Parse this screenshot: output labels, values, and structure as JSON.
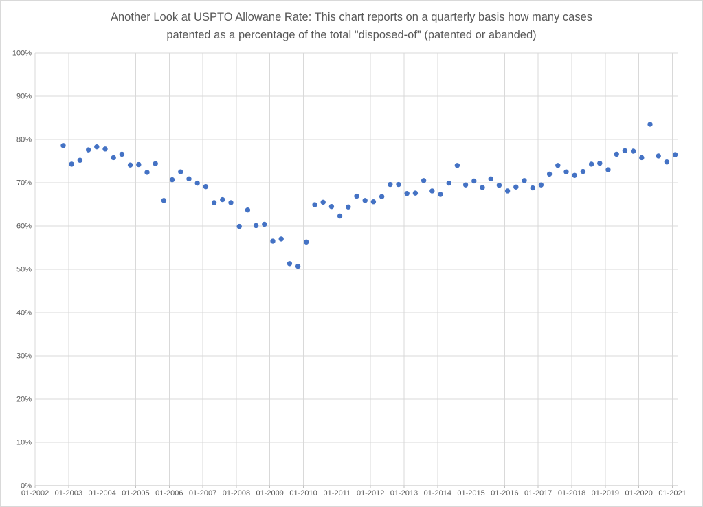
{
  "window": {
    "background_color": "#ffffff",
    "frame_border_color": "#d9d9d9"
  },
  "chart_data": {
    "type": "scatter",
    "title": "Another Look at USPTO Allowane Rate: This chart reports on a quarterly basis how many cases patented as a percentage of the total \"disposed-of\" (patented or abanded)",
    "title_lines": [
      "Another Look at USPTO Allowane Rate: This chart reports on a quarterly basis how many cases",
      "patented as a percentage of the total \"disposed-of\" (patented or abanded)"
    ],
    "xlabel": "",
    "ylabel": "",
    "legend": "none",
    "grid": "both",
    "y_tick_labels": [
      "0%",
      "10%",
      "20%",
      "30%",
      "40%",
      "50%",
      "60%",
      "70%",
      "80%",
      "90%",
      "100%"
    ],
    "ylim": [
      0,
      100
    ],
    "x_tick_labels": [
      "01-2002",
      "01-2003",
      "01-2004",
      "01-2005",
      "01-2006",
      "01-2007",
      "01-2008",
      "01-2009",
      "01-2010",
      "01-2011",
      "01-2012",
      "01-2013",
      "01-2014",
      "01-2015",
      "01-2016",
      "01-2017",
      "01-2018",
      "01-2019",
      "01-2020",
      "01-2021"
    ],
    "marker_color": "#4472c4",
    "gridline_color": "#d9d9d9",
    "axis_line_color": "#bfbfbf",
    "tick_label_color": "#595959",
    "title_color": "#595959",
    "points": {
      "quarters": [
        "2002-Q4",
        "2003-Q1",
        "2003-Q2",
        "2003-Q3",
        "2003-Q4",
        "2004-Q1",
        "2004-Q2",
        "2004-Q3",
        "2004-Q4",
        "2005-Q1",
        "2005-Q2",
        "2005-Q3",
        "2005-Q4",
        "2006-Q1",
        "2006-Q2",
        "2006-Q3",
        "2006-Q4",
        "2007-Q1",
        "2007-Q2",
        "2007-Q3",
        "2007-Q4",
        "2008-Q1",
        "2008-Q2",
        "2008-Q3",
        "2008-Q4",
        "2009-Q1",
        "2009-Q2",
        "2009-Q3",
        "2009-Q4",
        "2010-Q1",
        "2010-Q2",
        "2010-Q3",
        "2010-Q4",
        "2011-Q1",
        "2011-Q2",
        "2011-Q3",
        "2011-Q4",
        "2012-Q1",
        "2012-Q2",
        "2012-Q3",
        "2012-Q4",
        "2013-Q1",
        "2013-Q2",
        "2013-Q3",
        "2013-Q4",
        "2014-Q1",
        "2014-Q2",
        "2014-Q3",
        "2014-Q4",
        "2015-Q1",
        "2015-Q2",
        "2015-Q3",
        "2015-Q4",
        "2016-Q1",
        "2016-Q2",
        "2016-Q3",
        "2016-Q4",
        "2017-Q1",
        "2017-Q2",
        "2017-Q3",
        "2017-Q4",
        "2018-Q1",
        "2018-Q2",
        "2018-Q3",
        "2018-Q4",
        "2019-Q1",
        "2019-Q2",
        "2019-Q3",
        "2019-Q4",
        "2020-Q1",
        "2020-Q2",
        "2020-Q3",
        "2020-Q4",
        "2021-Q1"
      ],
      "values_percent": [
        78.6,
        74.3,
        75.2,
        77.6,
        78.3,
        77.8,
        75.8,
        76.6,
        74.1,
        74.2,
        72.4,
        74.4,
        65.9,
        70.7,
        72.5,
        70.9,
        69.9,
        69.1,
        65.4,
        66.1,
        65.4,
        59.9,
        63.7,
        60.1,
        60.4,
        56.5,
        57.0,
        51.3,
        50.7,
        56.3,
        64.9,
        65.5,
        64.5,
        62.3,
        64.4,
        66.9,
        65.9,
        65.6,
        66.8,
        69.6,
        69.6,
        67.5,
        67.6,
        70.5,
        68.1,
        67.3,
        69.9,
        74.0,
        69.5,
        70.4,
        68.9,
        70.9,
        69.4,
        68.1,
        69.0,
        70.5,
        68.8,
        69.5,
        72.0,
        74.0,
        72.5,
        71.7,
        72.6,
        74.3,
        74.5,
        73.0,
        76.6,
        77.4,
        77.3,
        75.8,
        83.5,
        76.2,
        74.8,
        76.5
      ]
    }
  }
}
